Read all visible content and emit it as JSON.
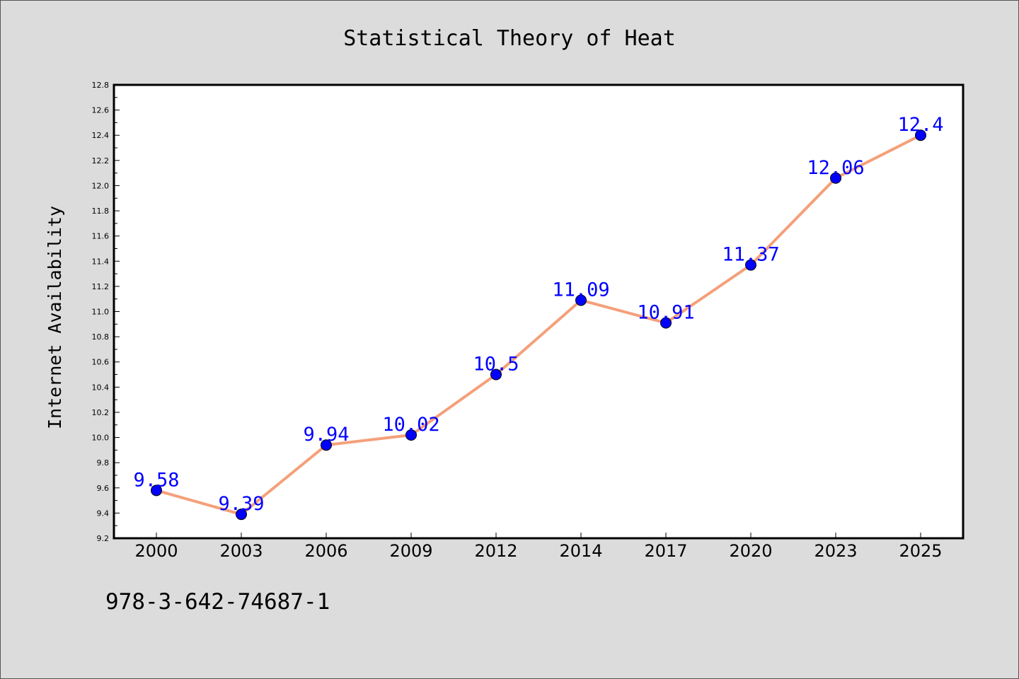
{
  "chart_data": {
    "type": "line",
    "title": "Statistical Theory of Heat",
    "xlabel": "",
    "ylabel": "Internet Availability",
    "categories": [
      "2000",
      "2003",
      "2006",
      "2009",
      "2012",
      "2014",
      "2017",
      "2020",
      "2023",
      "2025"
    ],
    "series": [
      {
        "values": [
          9.58,
          9.39,
          9.94,
          10.02,
          10.5,
          11.09,
          10.91,
          11.37,
          12.06,
          12.4
        ],
        "data_labels": [
          "9.58",
          "9.39",
          "9.94",
          "10.02",
          "10.5",
          "11.09",
          "10.91",
          "11.37",
          "12.06",
          "12.4"
        ]
      }
    ],
    "ylim": [
      9.2,
      12.8
    ],
    "yticks": [
      "9.2",
      "9.4",
      "9.6",
      "9.8",
      "10.0",
      "10.2",
      "10.4",
      "10.6",
      "10.8",
      "11.0",
      "11.2",
      "11.4",
      "11.6",
      "11.8",
      "12.0",
      "12.2",
      "12.4",
      "12.6",
      "12.8"
    ],
    "grid": false,
    "colors": {
      "line": "#f4a07a",
      "marker": "#0000ff",
      "label": "#0000ff",
      "background": "#dcdcdc",
      "plot_area": "#ffffff"
    }
  },
  "footer": {
    "isbn": "978-3-642-74687-1"
  }
}
